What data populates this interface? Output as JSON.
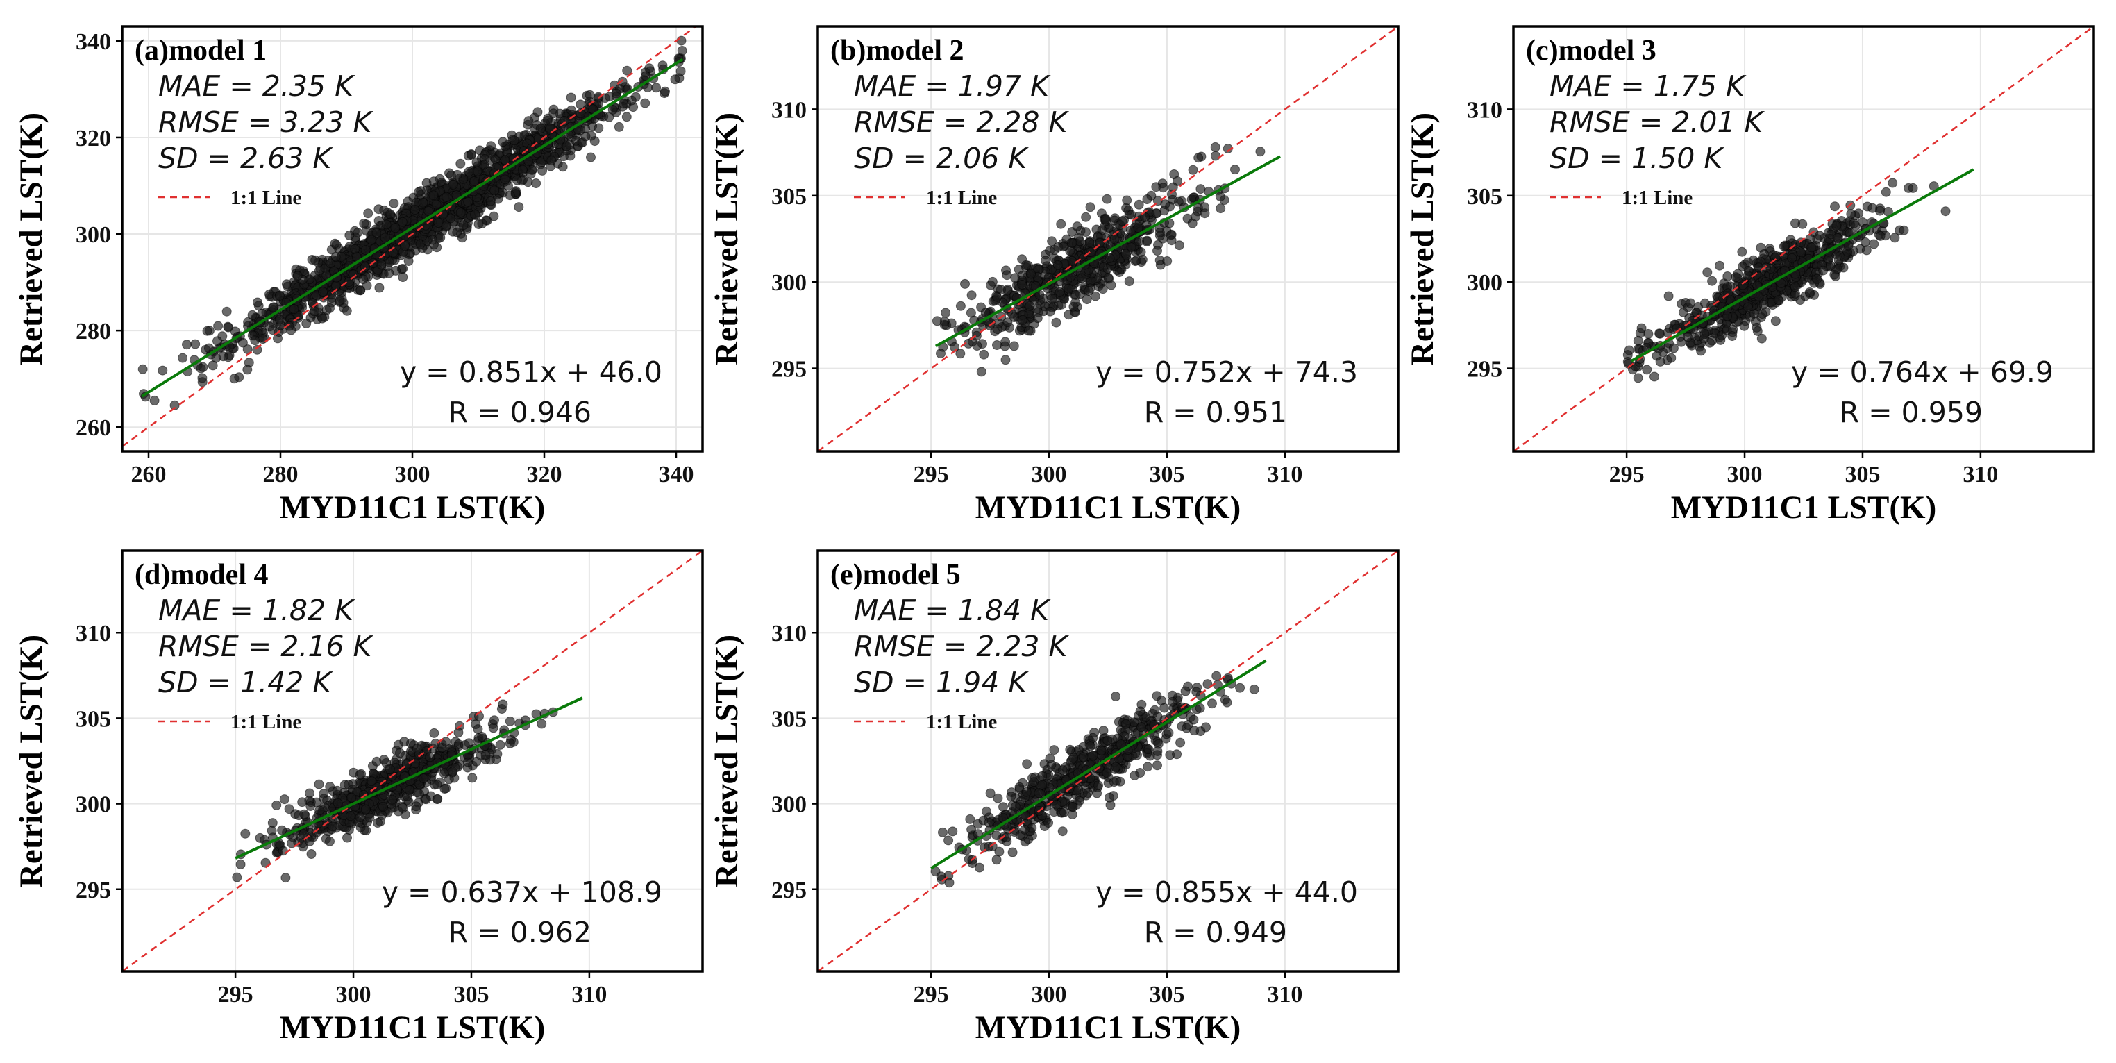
{
  "figure": {
    "colors": {
      "points": "#1a1a1a",
      "fit_line": "#0a7a0a",
      "one_to_one": "#e03030",
      "frame": "#000000",
      "grid": "#e6e6e6"
    }
  },
  "chart_data": [
    {
      "type": "scatter",
      "title": "(a)model 1",
      "xlabel": "MYD11C1 LST(K)",
      "ylabel": "Retrieved LST(K)",
      "xlim": [
        256,
        344
      ],
      "ylim": [
        255,
        343
      ],
      "xticks": [
        260,
        280,
        300,
        320,
        340
      ],
      "yticks": [
        260,
        280,
        300,
        320,
        340
      ],
      "grid": true,
      "stats": [
        "MAE = 2.35 K",
        "RMSE = 3.23 K",
        "SD = 2.63 K"
      ],
      "legend": "1:1 Line",
      "equation": "y = 0.851x + 46.0",
      "r_text": "R = 0.946",
      "fit": {
        "slope": 0.851,
        "intercept": 46.0,
        "x_range": [
          259,
          341
        ]
      },
      "point_cloud": {
        "n": 1700,
        "x_range": [
          259,
          341
        ],
        "x_center": 303,
        "x_sd": 15,
        "scatter_sd": 3.0
      }
    },
    {
      "type": "scatter",
      "title": "(b)model 2",
      "xlabel": "MYD11C1 LST(K)",
      "ylabel": "Retrieved LST(K)",
      "xlim": [
        290.2,
        314.8
      ],
      "ylim": [
        290.2,
        314.8
      ],
      "xticks": [
        295,
        300,
        305,
        310
      ],
      "yticks": [
        295,
        300,
        305,
        310
      ],
      "grid": true,
      "stats": [
        "MAE = 1.97 K",
        "RMSE = 2.28 K",
        "SD = 2.06 K"
      ],
      "legend": "1:1 Line",
      "equation": "y = 0.752x + 74.3",
      "r_text": "R = 0.951",
      "fit": {
        "slope": 0.752,
        "intercept": 74.3,
        "x_range": [
          295.2,
          309.8
        ]
      },
      "point_cloud": {
        "n": 600,
        "x_range": [
          295.2,
          309.5
        ],
        "x_center": 301.3,
        "x_sd": 2.6,
        "scatter_sd": 1.1
      }
    },
    {
      "type": "scatter",
      "title": "(c)model 3",
      "xlabel": "MYD11C1 LST(K)",
      "ylabel": "Retrieved LST(K)",
      "xlim": [
        290.2,
        314.8
      ],
      "ylim": [
        290.2,
        314.8
      ],
      "xticks": [
        295,
        300,
        305,
        310
      ],
      "yticks": [
        295,
        300,
        305,
        310
      ],
      "grid": true,
      "stats": [
        "MAE = 1.75 K",
        "RMSE = 2.01 K",
        "SD = 1.50 K"
      ],
      "legend": "1:1 Line",
      "equation": "y = 0.764x + 69.9",
      "r_text": "R = 0.959",
      "fit": {
        "slope": 0.764,
        "intercept": 69.9,
        "x_range": [
          295.2,
          309.7
        ]
      },
      "point_cloud": {
        "n": 700,
        "x_range": [
          295,
          309.5
        ],
        "x_center": 301,
        "x_sd": 2.5,
        "scatter_sd": 0.9
      }
    },
    {
      "type": "scatter",
      "title": "(d)model 4",
      "xlabel": "MYD11C1 LST(K)",
      "ylabel": "Retrieved LST(K)",
      "xlim": [
        290.2,
        314.8
      ],
      "ylim": [
        290.2,
        314.8
      ],
      "xticks": [
        295,
        300,
        305,
        310
      ],
      "yticks": [
        295,
        300,
        305,
        310
      ],
      "grid": true,
      "stats": [
        "MAE = 1.82 K",
        "RMSE = 2.16 K",
        "SD = 1.42 K"
      ],
      "legend": "1:1 Line",
      "equation": "y = 0.637x + 108.9",
      "r_text": "R = 0.962",
      "fit": {
        "slope": 0.637,
        "intercept": 108.9,
        "x_range": [
          295,
          309.7
        ]
      },
      "point_cloud": {
        "n": 650,
        "x_range": [
          295,
          309.7
        ],
        "x_center": 301.5,
        "x_sd": 2.4,
        "scatter_sd": 0.8
      }
    },
    {
      "type": "scatter",
      "title": "(e)model 5",
      "xlabel": "MYD11C1 LST(K)",
      "ylabel": "Retrieved LST(K)",
      "xlim": [
        290.2,
        314.8
      ],
      "ylim": [
        290.2,
        314.8
      ],
      "xticks": [
        295,
        300,
        305,
        310
      ],
      "yticks": [
        295,
        300,
        305,
        310
      ],
      "grid": true,
      "stats": [
        "MAE = 1.84 K",
        "RMSE = 2.23 K",
        "SD = 1.94 K"
      ],
      "legend": "1:1 Line",
      "equation": "y = 0.855x + 44.0",
      "r_text": "R = 0.949",
      "fit": {
        "slope": 0.855,
        "intercept": 44.0,
        "x_range": [
          295,
          309.2
        ]
      },
      "point_cloud": {
        "n": 550,
        "x_range": [
          295,
          309
        ],
        "x_center": 301.5,
        "x_sd": 2.7,
        "scatter_sd": 1.0
      }
    }
  ]
}
